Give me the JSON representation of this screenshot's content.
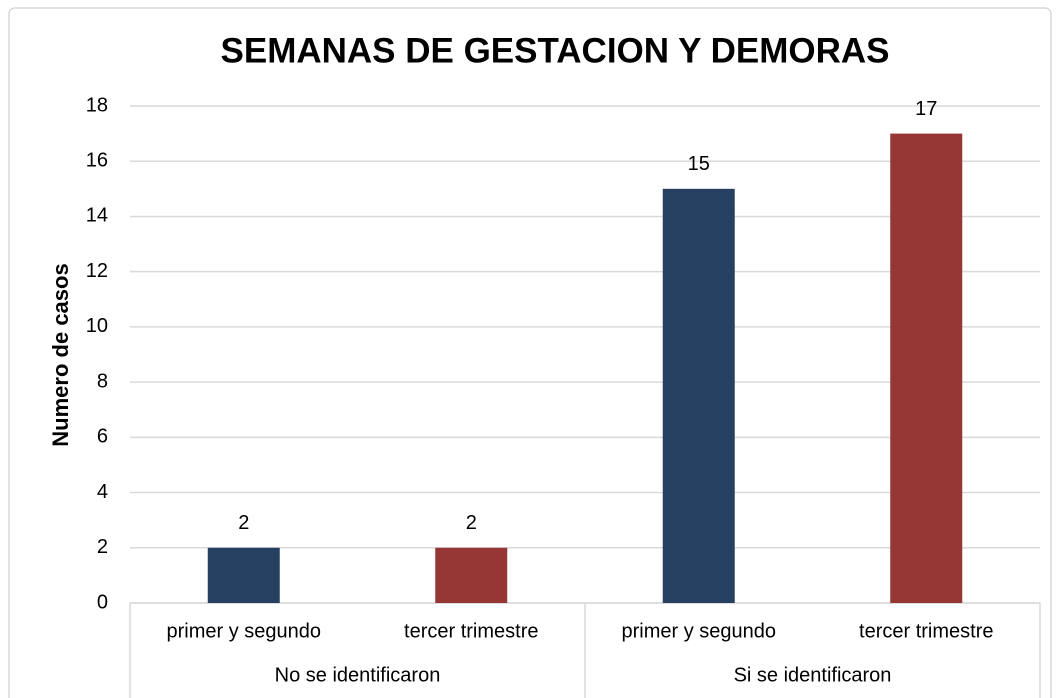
{
  "chart_data": {
    "type": "bar",
    "title": "SEMANAS DE GESTACION Y DEMORAS",
    "y_label": "Numero de casos",
    "categories": [
      "primer y segundo",
      "tercer trimestre",
      "primer y segundo",
      "tercer trimestre"
    ],
    "groups": [
      "No se identificaron",
      "Si se identificaron"
    ],
    "values": [
      2,
      2,
      15,
      17
    ],
    "colors": [
      "#264061",
      "#953735",
      "#264061",
      "#953735"
    ],
    "ylim": [
      0,
      18
    ],
    "yticks": [
      0,
      2,
      4,
      6,
      8,
      10,
      12,
      14,
      16,
      18
    ],
    "grid": true
  }
}
